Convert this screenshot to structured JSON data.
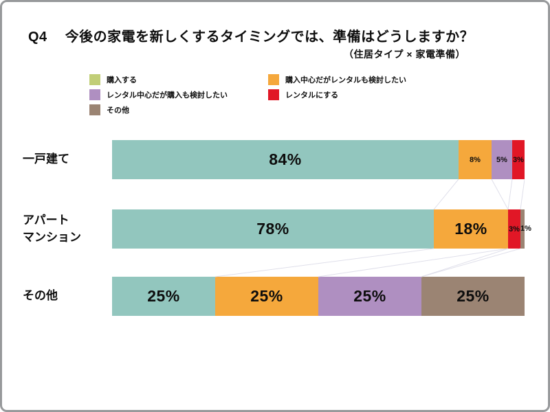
{
  "header": {
    "q_label": "Q4",
    "title": "今後の家電を新しくするタイミングでは、準備はどうしますか？",
    "subtitle": "（住居タイプ × 家電準備）"
  },
  "legend": {
    "items": [
      {
        "label": "購入する",
        "color": "#C1CE77",
        "column": 1
      },
      {
        "label": "購入中心だがレンタルも検討したい",
        "color": "#F5A83C",
        "column": 2
      },
      {
        "label": "レンタル中心だが購入も検討したい",
        "color": "#AF8FC1",
        "column": 1
      },
      {
        "label": "レンタルにする",
        "color": "#E11726",
        "column": 2
      },
      {
        "label": "その他",
        "color": "#9B8473",
        "column": 1
      }
    ]
  },
  "chart_data": {
    "type": "bar",
    "orientation": "horizontal",
    "stacked": true,
    "unit": "%",
    "xlim": [
      0,
      100
    ],
    "grid": false,
    "legend_position": "top-left",
    "connector_lines": true,
    "categories": [
      "一戸建て",
      "アパート\nマンション",
      "その他"
    ],
    "series": [
      {
        "name": "購入する",
        "color": "#92C6BE",
        "values": [
          84,
          78,
          25
        ]
      },
      {
        "name": "購入中心だがレンタルも検討したい",
        "color": "#F5A83C",
        "values": [
          8,
          18,
          25
        ]
      },
      {
        "name": "レンタル中心だが購入も検討したい",
        "color": "#AF8FC1",
        "values": [
          5,
          0,
          25
        ]
      },
      {
        "name": "レンタルにする",
        "color": "#E11726",
        "values": [
          3,
          3,
          0
        ]
      },
      {
        "name": "その他",
        "color": "#9B8473",
        "values": [
          0,
          1,
          25
        ]
      }
    ],
    "value_label_format": "{v}%"
  },
  "colors": {
    "background": "#ffffff",
    "border": "#97999B",
    "text": "#0D0D0D",
    "connector_line": "#DFDFEA"
  }
}
